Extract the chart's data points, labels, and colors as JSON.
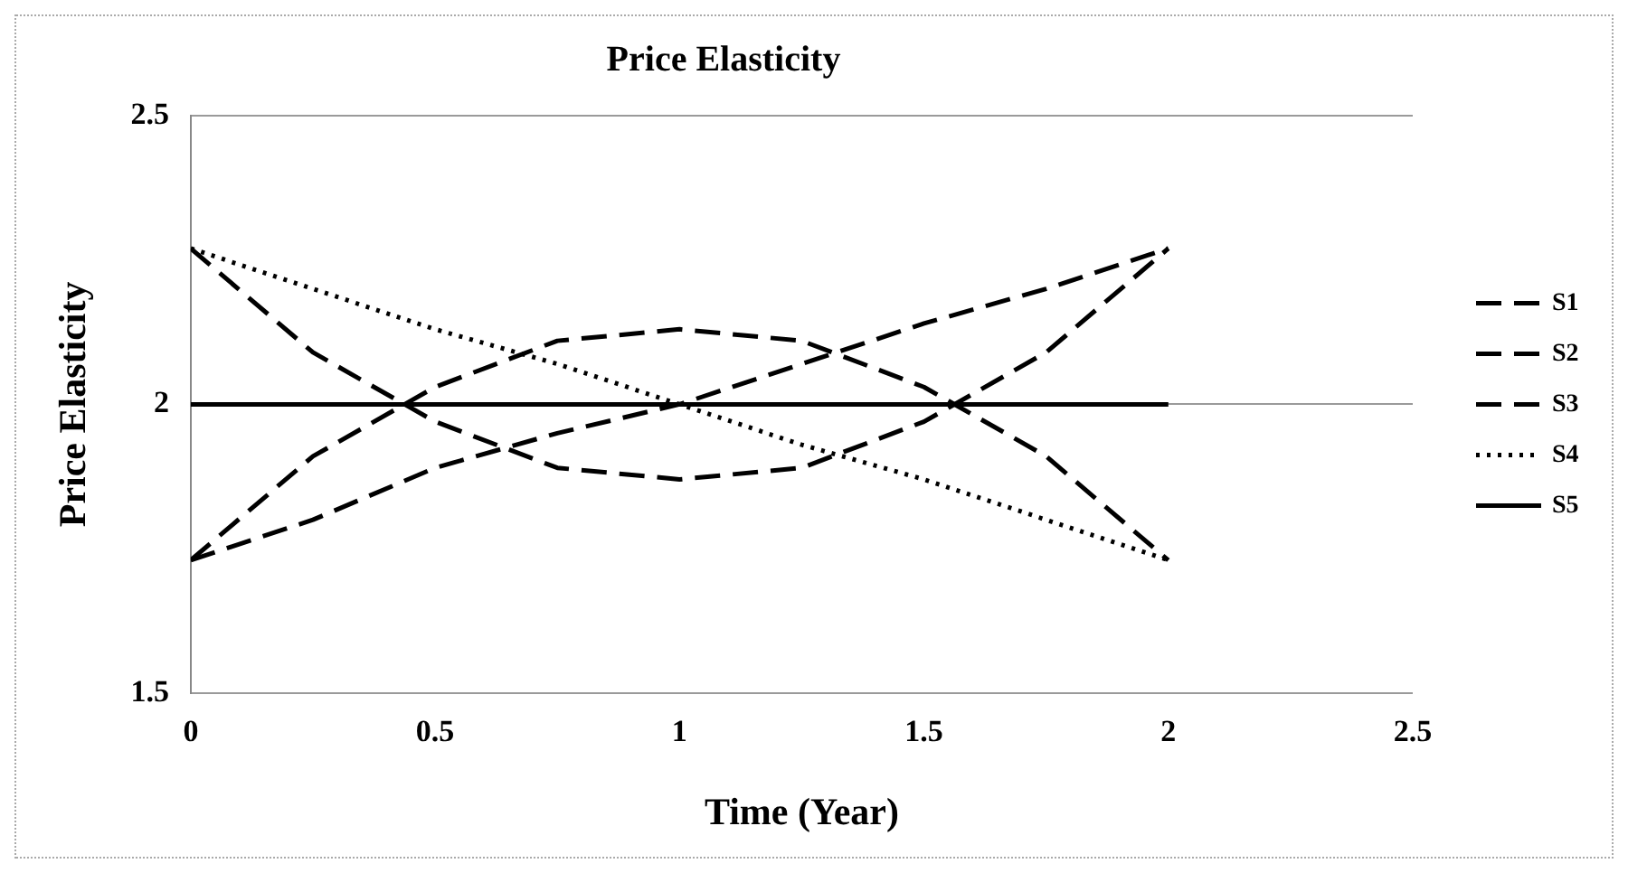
{
  "chart_data": {
    "type": "line",
    "title": "Price Elasticity",
    "xlabel": "Time (Year)",
    "ylabel": "Price Elasticity",
    "x": [
      0,
      0.25,
      0.5,
      0.75,
      1,
      1.25,
      1.5,
      1.75,
      2
    ],
    "series": [
      {
        "name": "S1",
        "color": "#000000",
        "line_style": "dashed",
        "values": [
          1.73,
          1.91,
          2.03,
          2.11,
          2.13,
          2.11,
          2.03,
          1.91,
          1.73
        ]
      },
      {
        "name": "S2",
        "color": "#000000",
        "line_style": "dashed",
        "values": [
          2.27,
          2.09,
          1.97,
          1.89,
          1.87,
          1.89,
          1.97,
          2.09,
          2.27
        ]
      },
      {
        "name": "S3",
        "color": "#000000",
        "line_style": "dashed",
        "values": [
          1.73,
          1.8,
          1.89,
          1.95,
          2.0,
          2.07,
          2.14,
          2.2,
          2.27
        ]
      },
      {
        "name": "S4",
        "color": "#000000",
        "line_style": "dotted",
        "values": [
          2.27,
          2.2,
          2.13,
          2.07,
          2.0,
          1.93,
          1.87,
          1.8,
          1.73
        ]
      },
      {
        "name": "S5",
        "color": "#000000",
        "line_style": "solid",
        "values": [
          2,
          2,
          2,
          2,
          2,
          2,
          2,
          2,
          2
        ]
      }
    ],
    "xlim": [
      0,
      2.5
    ],
    "xticks": [
      0,
      0.5,
      1,
      1.5,
      2,
      2.5
    ],
    "ylim": [
      1.5,
      2.5
    ],
    "yticks": [
      1.5,
      2,
      2.5
    ],
    "grid": "y",
    "legend": "right",
    "marker": "none"
  }
}
